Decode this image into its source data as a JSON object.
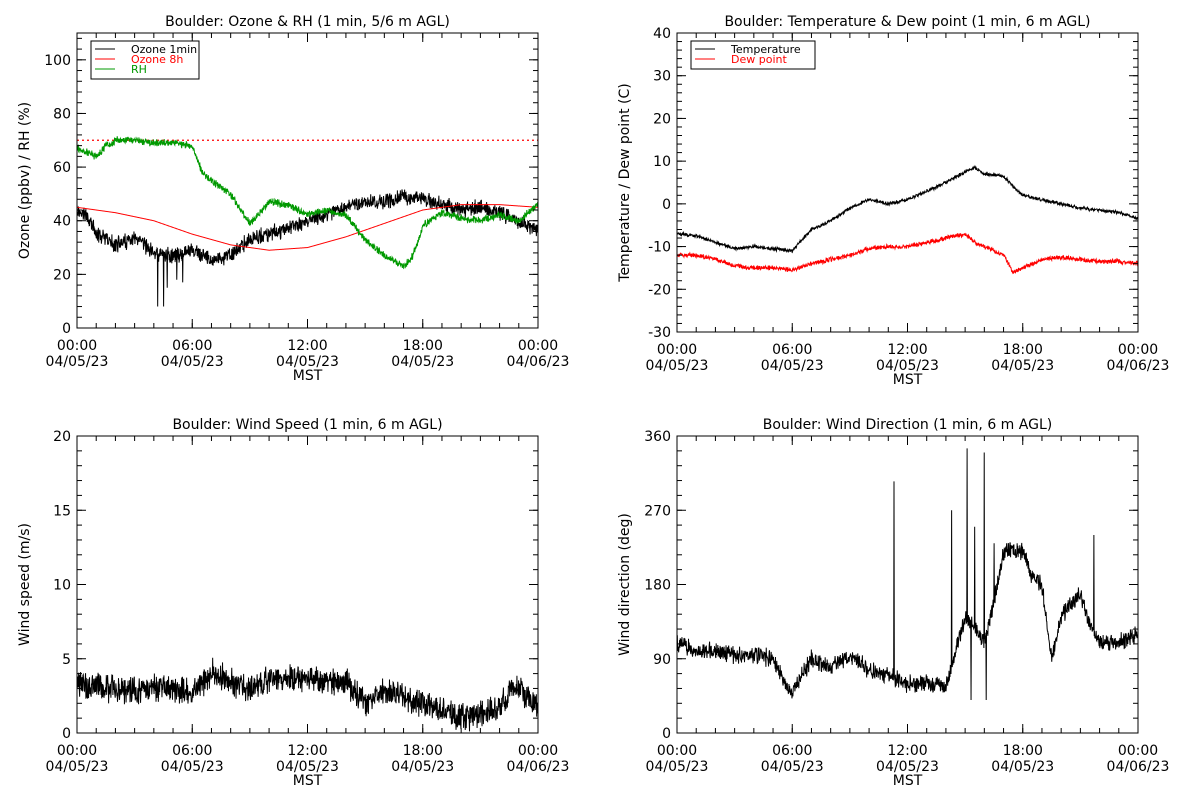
{
  "chart_data": [
    {
      "type": "line",
      "title": "Boulder: Ozone & RH (1 min, 5/6 m AGL)",
      "ylabel": "Ozone (ppbv) / RH (%)",
      "xlabel": "MST",
      "ylim": [
        0,
        110
      ],
      "yticks": [
        0,
        20,
        40,
        60,
        80,
        100
      ],
      "xlim_hours": [
        0,
        24
      ],
      "xticks": [
        {
          "h": 0,
          "time": "00:00",
          "date": "04/05/23"
        },
        {
          "h": 6,
          "time": "06:00",
          "date": "04/05/23"
        },
        {
          "h": 12,
          "time": "12:00",
          "date": "04/05/23"
        },
        {
          "h": 18,
          "time": "18:00",
          "date": "04/05/23"
        },
        {
          "h": 24,
          "time": "00:00",
          "date": "04/06/23"
        }
      ],
      "legend_position": "top-left",
      "reference_line": {
        "y": 70,
        "color": "#ff0000",
        "style": "dotted"
      },
      "series": [
        {
          "name": "Ozone 1min",
          "color": "#000000",
          "noise": 2.5,
          "spikes": [
            [
              4.2,
              8
            ],
            [
              4.5,
              8
            ],
            [
              4.7,
              15
            ],
            [
              5.2,
              18
            ],
            [
              5.5,
              17
            ]
          ],
          "points": [
            [
              0,
              44
            ],
            [
              0.5,
              42
            ],
            [
              1,
              35
            ],
            [
              2,
              31
            ],
            [
              3,
              33
            ],
            [
              3.5,
              31
            ],
            [
              4,
              28
            ],
            [
              5,
              27
            ],
            [
              6,
              29
            ],
            [
              7,
              25
            ],
            [
              8,
              27
            ],
            [
              9,
              33
            ],
            [
              10,
              35
            ],
            [
              11,
              37
            ],
            [
              12,
              40
            ],
            [
              13,
              42
            ],
            [
              14,
              45
            ],
            [
              15,
              47
            ],
            [
              16,
              47
            ],
            [
              17,
              49
            ],
            [
              18,
              48
            ],
            [
              19,
              46
            ],
            [
              20,
              44
            ],
            [
              21,
              45
            ],
            [
              22,
              43
            ],
            [
              23,
              40
            ],
            [
              24,
              36
            ]
          ]
        },
        {
          "name": "Ozone 8h",
          "color": "#ff0000",
          "noise": 0,
          "points": [
            [
              0,
              45
            ],
            [
              2,
              43
            ],
            [
              4,
              40
            ],
            [
              6,
              35
            ],
            [
              8,
              31
            ],
            [
              10,
              29
            ],
            [
              12,
              30
            ],
            [
              14,
              34
            ],
            [
              16,
              39
            ],
            [
              18,
              44
            ],
            [
              20,
              46
            ],
            [
              22,
              46
            ],
            [
              24,
              45
            ]
          ]
        },
        {
          "name": "RH",
          "color": "#009900",
          "noise": 1.2,
          "points": [
            [
              0,
              67
            ],
            [
              1,
              64
            ],
            [
              1.5,
              68
            ],
            [
              2,
              70
            ],
            [
              3,
              70
            ],
            [
              4,
              69
            ],
            [
              5,
              69
            ],
            [
              6,
              68
            ],
            [
              6.5,
              58
            ],
            [
              7,
              55
            ],
            [
              8,
              50
            ],
            [
              9,
              39
            ],
            [
              10,
              47
            ],
            [
              11,
              46
            ],
            [
              12,
              42
            ],
            [
              13,
              44
            ],
            [
              14,
              42
            ],
            [
              15,
              33
            ],
            [
              16,
              27
            ],
            [
              17,
              23
            ],
            [
              17.5,
              27
            ],
            [
              18,
              38
            ],
            [
              19,
              43
            ],
            [
              20,
              41
            ],
            [
              21,
              40
            ],
            [
              22,
              42
            ],
            [
              23,
              40
            ],
            [
              24,
              46
            ]
          ]
        }
      ]
    },
    {
      "type": "line",
      "title": "Boulder: Temperature & Dew point (1 min, 6 m AGL)",
      "ylabel": "Temperature / Dew point (C)",
      "xlabel": "MST",
      "ylim": [
        -30,
        40
      ],
      "yticks": [
        -30,
        -20,
        -10,
        0,
        10,
        20,
        30,
        40
      ],
      "xlim_hours": [
        0,
        24
      ],
      "xticks": [
        {
          "h": 0,
          "time": "00:00",
          "date": "04/05/23"
        },
        {
          "h": 6,
          "time": "06:00",
          "date": "04/05/23"
        },
        {
          "h": 12,
          "time": "12:00",
          "date": "04/05/23"
        },
        {
          "h": 18,
          "time": "18:00",
          "date": "04/05/23"
        },
        {
          "h": 24,
          "time": "00:00",
          "date": "04/06/23"
        }
      ],
      "legend_position": "top-left",
      "series": [
        {
          "name": "Temperature",
          "color": "#000000",
          "noise": 0.35,
          "points": [
            [
              0,
              -7
            ],
            [
              1,
              -7.5
            ],
            [
              2,
              -9
            ],
            [
              3,
              -10.5
            ],
            [
              4,
              -10
            ],
            [
              5,
              -10.5
            ],
            [
              6,
              -11
            ],
            [
              7,
              -6
            ],
            [
              8,
              -4
            ],
            [
              9,
              -1
            ],
            [
              10,
              1
            ],
            [
              11,
              0
            ],
            [
              12,
              1
            ],
            [
              13,
              3
            ],
            [
              14,
              5
            ],
            [
              15,
              7.5
            ],
            [
              15.5,
              8.5
            ],
            [
              16,
              7
            ],
            [
              17,
              6.5
            ],
            [
              17.5,
              4
            ],
            [
              18,
              2
            ],
            [
              19,
              1
            ],
            [
              20,
              0
            ],
            [
              21,
              -1
            ],
            [
              22,
              -1.5
            ],
            [
              23,
              -2
            ],
            [
              24,
              -3.5
            ]
          ]
        },
        {
          "name": "Dew point",
          "color": "#ff0000",
          "noise": 0.45,
          "points": [
            [
              0,
              -12
            ],
            [
              1,
              -12
            ],
            [
              2,
              -13
            ],
            [
              3,
              -14.5
            ],
            [
              4,
              -15
            ],
            [
              5,
              -15
            ],
            [
              6,
              -15.5
            ],
            [
              7,
              -14
            ],
            [
              8,
              -13
            ],
            [
              9,
              -12
            ],
            [
              10,
              -10.5
            ],
            [
              11,
              -10
            ],
            [
              12,
              -10
            ],
            [
              13,
              -9
            ],
            [
              14,
              -8
            ],
            [
              15,
              -7
            ],
            [
              15.5,
              -9
            ],
            [
              16,
              -10
            ],
            [
              17,
              -12
            ],
            [
              17.5,
              -16
            ],
            [
              18,
              -15
            ],
            [
              19,
              -13
            ],
            [
              20,
              -12.5
            ],
            [
              21,
              -13
            ],
            [
              22,
              -13.5
            ],
            [
              23,
              -13.5
            ],
            [
              24,
              -14
            ]
          ]
        }
      ]
    },
    {
      "type": "line",
      "title": "Boulder: Wind Speed (1 min, 6 m AGL)",
      "ylabel": "Wind speed (m/s)",
      "xlabel": "MST",
      "ylim": [
        0,
        20
      ],
      "yticks": [
        0,
        5,
        10,
        15,
        20
      ],
      "xlim_hours": [
        0,
        24
      ],
      "xticks": [
        {
          "h": 0,
          "time": "00:00",
          "date": "04/05/23"
        },
        {
          "h": 6,
          "time": "06:00",
          "date": "04/05/23"
        },
        {
          "h": 12,
          "time": "12:00",
          "date": "04/05/23"
        },
        {
          "h": 18,
          "time": "18:00",
          "date": "04/05/23"
        },
        {
          "h": 24,
          "time": "00:00",
          "date": "04/06/23"
        }
      ],
      "series": [
        {
          "name": "",
          "color": "#000000",
          "noise": 0.8,
          "min": 0,
          "points": [
            [
              0,
              3.3
            ],
            [
              2,
              3
            ],
            [
              4,
              3
            ],
            [
              6,
              2.8
            ],
            [
              7,
              4
            ],
            [
              8,
              3.5
            ],
            [
              9,
              3
            ],
            [
              10,
              3.5
            ],
            [
              11,
              3.8
            ],
            [
              12,
              3.8
            ],
            [
              13,
              3.5
            ],
            [
              14,
              3.5
            ],
            [
              15,
              2
            ],
            [
              16,
              2.8
            ],
            [
              17,
              2.5
            ],
            [
              18,
              2
            ],
            [
              19,
              1.5
            ],
            [
              20,
              1
            ],
            [
              21,
              1.3
            ],
            [
              22,
              1.8
            ],
            [
              22.6,
              3
            ],
            [
              23,
              3
            ],
            [
              24,
              2
            ]
          ]
        }
      ]
    },
    {
      "type": "line",
      "title": "Boulder: Wind Direction (1 min, 6 m AGL)",
      "ylabel": "Wind direction (deg)",
      "xlabel": "MST",
      "ylim": [
        0,
        360
      ],
      "yticks": [
        0,
        90,
        180,
        270,
        360
      ],
      "xlim_hours": [
        0,
        24
      ],
      "xticks": [
        {
          "h": 0,
          "time": "00:00",
          "date": "04/05/23"
        },
        {
          "h": 6,
          "time": "06:00",
          "date": "04/05/23"
        },
        {
          "h": 12,
          "time": "12:00",
          "date": "04/05/23"
        },
        {
          "h": 18,
          "time": "18:00",
          "date": "04/05/23"
        },
        {
          "h": 24,
          "time": "00:00",
          "date": "04/06/23"
        }
      ],
      "series": [
        {
          "name": "",
          "color": "#000000",
          "noise": 9,
          "min": 0,
          "max": 360,
          "spikes": [
            [
              11.3,
              305
            ],
            [
              14.3,
              270
            ],
            [
              15.1,
              345
            ],
            [
              15.5,
              250
            ],
            [
              16.0,
              340
            ],
            [
              16.1,
              40
            ],
            [
              16.5,
              230
            ],
            [
              15.3,
              40
            ],
            [
              21.7,
              240
            ]
          ],
          "points": [
            [
              0,
              110
            ],
            [
              1,
              100
            ],
            [
              2,
              100
            ],
            [
              3,
              95
            ],
            [
              4,
              95
            ],
            [
              5,
              90
            ],
            [
              5.7,
              55
            ],
            [
              6,
              50
            ],
            [
              7,
              90
            ],
            [
              8,
              80
            ],
            [
              9,
              95
            ],
            [
              10,
              75
            ],
            [
              11,
              70
            ],
            [
              12,
              60
            ],
            [
              13,
              60
            ],
            [
              14,
              55
            ],
            [
              14.5,
              100
            ],
            [
              15,
              140
            ],
            [
              15.5,
              130
            ],
            [
              16,
              110
            ],
            [
              16.5,
              160
            ],
            [
              17,
              220
            ],
            [
              18,
              220
            ],
            [
              18.5,
              190
            ],
            [
              19,
              180
            ],
            [
              19.5,
              90
            ],
            [
              20,
              140
            ],
            [
              21,
              170
            ],
            [
              21.5,
              130
            ],
            [
              22,
              110
            ],
            [
              23,
              110
            ],
            [
              24,
              120
            ]
          ]
        }
      ]
    }
  ]
}
